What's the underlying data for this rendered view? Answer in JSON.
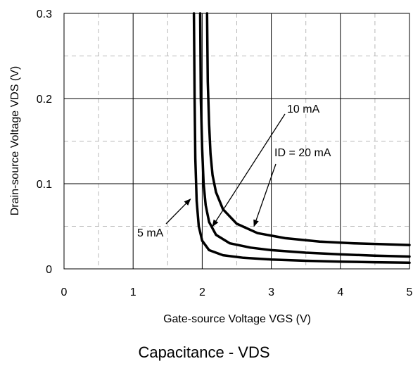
{
  "chart_data": {
    "type": "line",
    "title": "Capacitance - VDS",
    "xlabel": "Gate-source Voltage VGS (V)",
    "ylabel": "Drain-source Voltage VDS (V)",
    "xlim": [
      0,
      5
    ],
    "ylim": [
      0,
      0.3
    ],
    "x_ticks": [
      "0",
      "1",
      "2",
      "3",
      "4",
      "5"
    ],
    "y_ticks": [
      "0",
      "0.1",
      "0.2",
      "0.3"
    ],
    "grid": "solid major, dashed minor",
    "series": [
      {
        "name": "5 mA",
        "x": [
          1.88,
          1.89,
          1.9,
          1.92,
          1.95,
          2.0,
          2.1,
          2.3,
          2.6,
          3.0,
          3.5,
          4.0,
          4.5,
          5.0
        ],
        "y": [
          0.3,
          0.2,
          0.13,
          0.08,
          0.05,
          0.033,
          0.022,
          0.016,
          0.013,
          0.011,
          0.0095,
          0.0085,
          0.0078,
          0.0072
        ]
      },
      {
        "name": "10 mA",
        "x": [
          1.97,
          1.98,
          2.0,
          2.02,
          2.05,
          2.1,
          2.2,
          2.4,
          2.7,
          3.0,
          3.5,
          4.0,
          4.5,
          5.0
        ],
        "y": [
          0.3,
          0.2,
          0.14,
          0.1,
          0.075,
          0.055,
          0.04,
          0.03,
          0.025,
          0.022,
          0.019,
          0.017,
          0.0155,
          0.0145
        ]
      },
      {
        "name": "ID = 20 mA",
        "x": [
          2.07,
          2.08,
          2.1,
          2.12,
          2.15,
          2.2,
          2.3,
          2.5,
          2.8,
          3.2,
          3.7,
          4.2,
          4.6,
          5.0
        ],
        "y": [
          0.3,
          0.22,
          0.17,
          0.135,
          0.11,
          0.09,
          0.07,
          0.053,
          0.042,
          0.036,
          0.032,
          0.03,
          0.029,
          0.028
        ]
      }
    ],
    "annotations": [
      {
        "text": "10 mA",
        "arrow_to": [
          2.15,
          0.05
        ]
      },
      {
        "text": "ID = 20 mA",
        "arrow_to": [
          2.75,
          0.05
        ]
      },
      {
        "text": "5 mA",
        "arrow_to": [
          1.83,
          0.082
        ]
      }
    ]
  }
}
